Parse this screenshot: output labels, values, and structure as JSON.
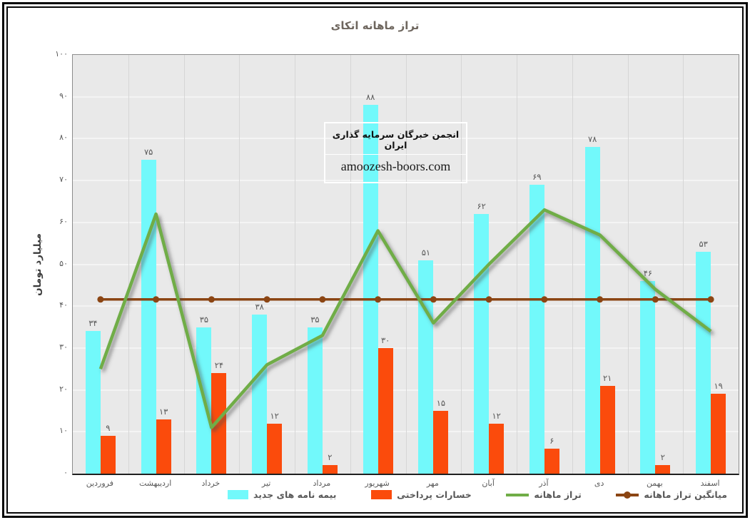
{
  "title": "تراز ماهانه اتکای",
  "y_axis": {
    "title": "میلیارد تومان",
    "ticks": [
      0,
      10,
      20,
      30,
      40,
      50,
      60,
      70,
      80,
      90,
      100
    ],
    "max": 100
  },
  "watermark": {
    "line1": "انجمن خبرگان سرمایه گذاری ایران",
    "line2": "amoozesh-boors.com"
  },
  "legend": [
    {
      "label": "بیمه نامه های جدید",
      "type": "bar",
      "color": "#72f9fb"
    },
    {
      "label": "خسارات پرداختی",
      "type": "bar",
      "color": "#fb4b0c"
    },
    {
      "label": "تراز ماهانه",
      "type": "line",
      "color": "#70ad47"
    },
    {
      "label": "میانگین تراز ماهانه",
      "type": "line-marker",
      "color": "#8b4513"
    }
  ],
  "chart_data": {
    "type": "combo-bar-line",
    "categories": [
      "فروردین",
      "اردیبهشت",
      "خرداد",
      "تیر",
      "مرداد",
      "شهریور",
      "مهر",
      "آبان",
      "آذر",
      "دی",
      "بهمن",
      "اسفند"
    ],
    "series": [
      {
        "name": "بیمه نامه های جدید",
        "type": "bar",
        "color": "#72f9fb",
        "values": [
          34,
          75,
          35,
          38,
          35,
          88,
          51,
          62,
          69,
          78,
          46,
          53
        ],
        "data_labels": true
      },
      {
        "name": "خسارات پرداختی",
        "type": "bar",
        "color": "#fb4b0c",
        "values": [
          9,
          13,
          24,
          12,
          2,
          30,
          15,
          12,
          6,
          21,
          2,
          19
        ],
        "data_labels": true
      },
      {
        "name": "تراز ماهانه",
        "type": "line",
        "color": "#70ad47",
        "values": [
          25,
          62,
          11,
          26,
          33,
          58,
          36,
          50,
          63,
          57,
          44,
          34
        ],
        "data_labels": false
      },
      {
        "name": "میانگین تراز ماهانه",
        "type": "average-line",
        "color": "#8b4513",
        "values": [
          41.6,
          41.6,
          41.6,
          41.6,
          41.6,
          41.6,
          41.6,
          41.6,
          41.6,
          41.6,
          41.6,
          41.6
        ],
        "marker": "circle",
        "data_labels": false
      }
    ],
    "title": "تراز ماهانه اتکای",
    "xlabel": "",
    "ylabel": "میلیارد تومان",
    "ylim": [
      0,
      100
    ],
    "grid": true,
    "legend_position": "bottom",
    "number_locale": "fa-IR"
  }
}
